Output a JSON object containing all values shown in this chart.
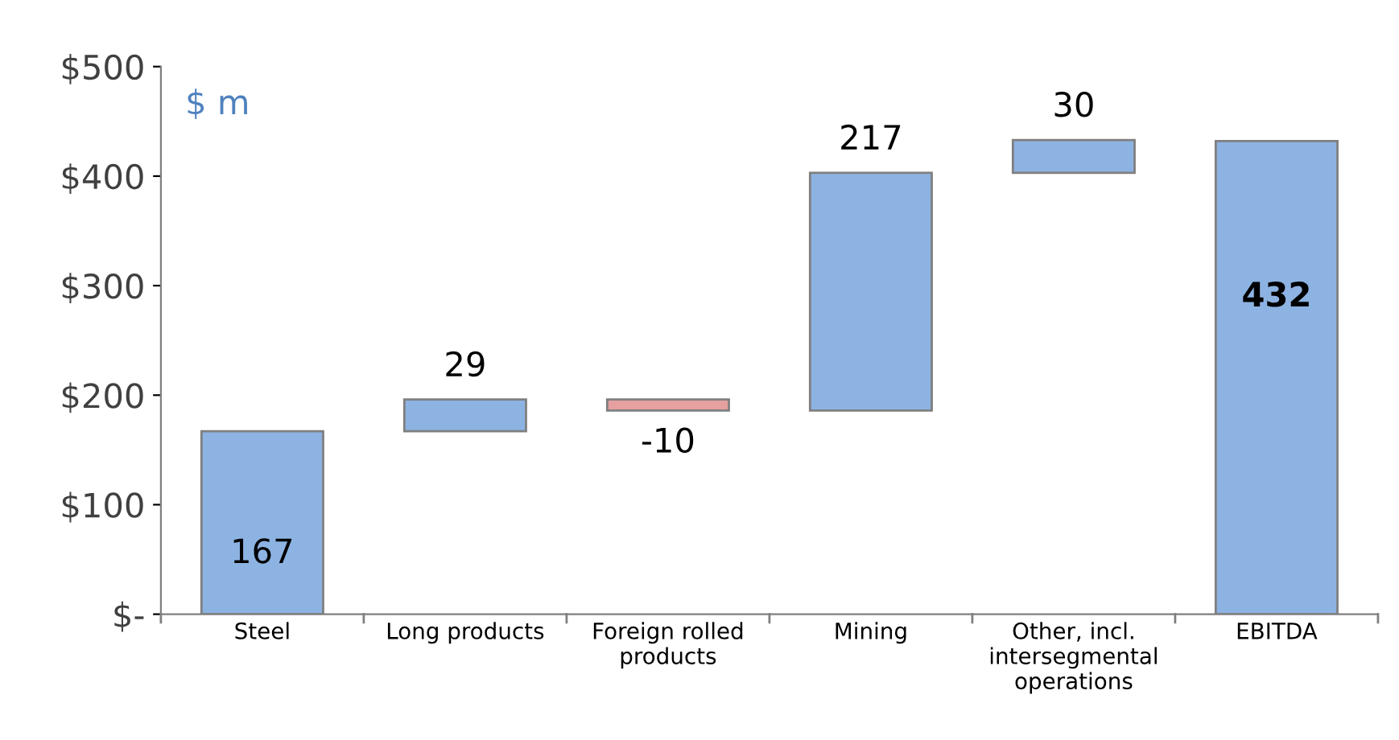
{
  "chart_data": {
    "type": "bar",
    "categories": [
      "Steel",
      "Long products",
      "Foreign rolled products",
      "Mining",
      "Other, incl. intersegmental operations",
      "EBITDA"
    ],
    "values": [
      167,
      29,
      -10,
      217,
      30,
      432
    ],
    "base": [
      0,
      167,
      196,
      186,
      403,
      0
    ],
    "colors": [
      "#8db3e2",
      "#8db3e2",
      "#e6a0a0",
      "#8db3e2",
      "#8db3e2",
      "#8db3e2"
    ],
    "ylim": [
      0,
      500
    ],
    "yticks": [
      {
        "value": 0,
        "label": "$-"
      },
      {
        "value": 100,
        "label": "$100"
      },
      {
        "value": 200,
        "label": "$200"
      },
      {
        "value": 300,
        "label": "$300"
      },
      {
        "value": 400,
        "label": "$400"
      },
      {
        "value": 500,
        "label": "$500"
      }
    ],
    "annotations": [
      "$ m"
    ],
    "data_labels": true,
    "grid": false,
    "legend": false
  }
}
